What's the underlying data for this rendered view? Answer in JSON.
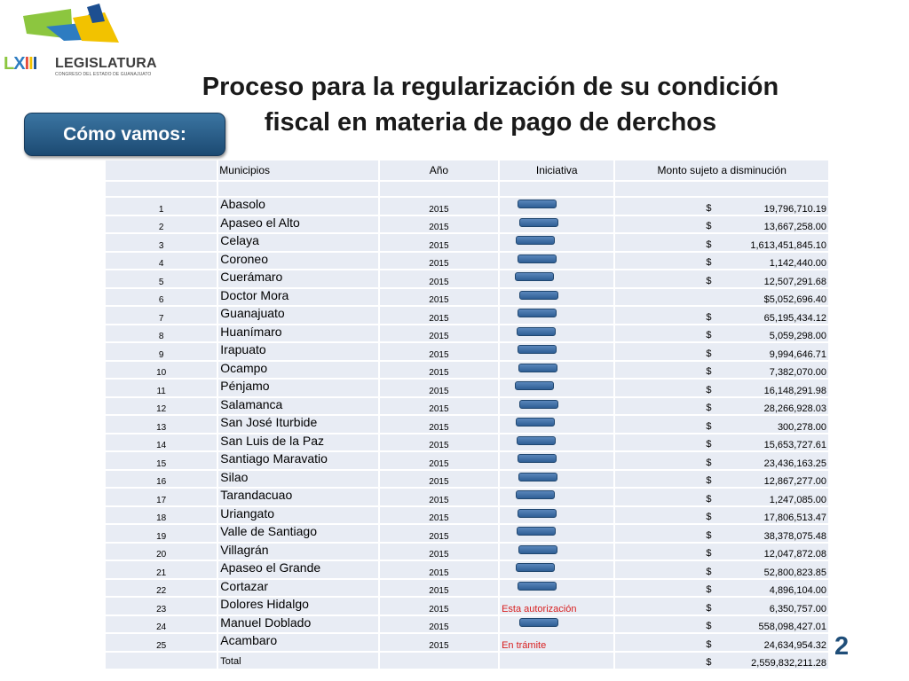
{
  "logo": {
    "lx": "LXIII",
    "name": "LEGISLATURA",
    "subtitle": "CONGRESO DEL ESTADO DE GUANAJUATO"
  },
  "title": {
    "line1": "Proceso para la regularización de su condición",
    "line2": "fiscal en materia de pago de derchos"
  },
  "badge": "Cómo vamos:",
  "table": {
    "headers": [
      "Municipios",
      "Año",
      "Iniciativa",
      "Monto sujeto a disminución"
    ],
    "rows": [
      {
        "n": "1",
        "name": "Abasolo",
        "year": "2015",
        "ini": "",
        "dollar": "$",
        "amount": "19,796,710.19"
      },
      {
        "n": "2",
        "name": "Apaseo el Alto",
        "year": "2015",
        "ini": "",
        "dollar": "$",
        "amount": "13,667,258.00"
      },
      {
        "n": "3",
        "name": "Celaya",
        "year": "2015",
        "ini": "",
        "dollar": "$",
        "amount": "1,613,451,845.10"
      },
      {
        "n": "4",
        "name": "Coroneo",
        "year": "2015",
        "ini": "",
        "dollar": "$",
        "amount": "1,142,440.00"
      },
      {
        "n": "5",
        "name": "Cuerámaro",
        "year": "2015",
        "ini": "",
        "dollar": "$",
        "amount": "12,507,291.68"
      },
      {
        "n": "6",
        "name": "Doctor Mora",
        "year": "2015",
        "ini": "",
        "dollar": "",
        "amount": "$5,052,696.40"
      },
      {
        "n": "7",
        "name": "Guanajuato",
        "year": "2015",
        "ini": "",
        "dollar": "$",
        "amount": "65,195,434.12"
      },
      {
        "n": "8",
        "name": "Huanímaro",
        "year": "2015",
        "ini": "",
        "dollar": "$",
        "amount": "5,059,298.00"
      },
      {
        "n": "9",
        "name": "Irapuato",
        "year": "2015",
        "ini": "",
        "dollar": "$",
        "amount": "9,994,646.71"
      },
      {
        "n": "10",
        "name": "Ocampo",
        "year": "2015",
        "ini": "",
        "dollar": "$",
        "amount": "7,382,070.00"
      },
      {
        "n": "11",
        "name": "Pénjamo",
        "year": "2015",
        "ini": "",
        "dollar": "$",
        "amount": "16,148,291.98"
      },
      {
        "n": "12",
        "name": "Salamanca",
        "year": "2015",
        "ini": "",
        "dollar": "$",
        "amount": "28,266,928.03"
      },
      {
        "n": "13",
        "name": "San José Iturbide",
        "year": "2015",
        "ini": "",
        "dollar": "$",
        "amount": "300,278.00"
      },
      {
        "n": "14",
        "name": "San Luis de la Paz",
        "year": "2015",
        "ini": "",
        "dollar": "$",
        "amount": "15,653,727.61"
      },
      {
        "n": "15",
        "name": "Santiago Maravatio",
        "year": "2015",
        "ini": "",
        "dollar": "$",
        "amount": "23,436,163.25"
      },
      {
        "n": "16",
        "name": "Silao",
        "year": "2015",
        "ini": "",
        "dollar": "$",
        "amount": "12,867,277.00"
      },
      {
        "n": "17",
        "name": "Tarandacuao",
        "year": "2015",
        "ini": "",
        "dollar": "$",
        "amount": "1,247,085.00"
      },
      {
        "n": "18",
        "name": "Uriangato",
        "year": "2015",
        "ini": "",
        "dollar": "$",
        "amount": "17,806,513.47"
      },
      {
        "n": "19",
        "name": "Valle de Santiago",
        "year": "2015",
        "ini": "",
        "dollar": "$",
        "amount": "38,378,075.48"
      },
      {
        "n": "20",
        "name": "Villagrán",
        "year": "2015",
        "ini": "",
        "dollar": "$",
        "amount": "12,047,872.08"
      },
      {
        "n": "21",
        "name": "Apaseo el Grande",
        "year": "2015",
        "ini": "",
        "dollar": "$",
        "amount": "52,800,823.85"
      },
      {
        "n": "22",
        "name": "Cortazar",
        "year": "2015",
        "ini": "",
        "dollar": "$",
        "amount": "4,896,104.00"
      },
      {
        "n": "23",
        "name": "Dolores Hidalgo",
        "year": "2015",
        "ini": "Esta autorización",
        "dollar": "$",
        "amount": "6,350,757.00"
      },
      {
        "n": "24",
        "name": "Manuel Doblado",
        "year": "2015",
        "ini": "",
        "dollar": "$",
        "amount": "558,098,427.01"
      },
      {
        "n": "25",
        "name": "Acambaro",
        "year": "2015",
        "ini": "En trámite",
        "dollar": "$",
        "amount": "24,634,954.32"
      }
    ],
    "total": {
      "label": "Total",
      "dollar": "$",
      "amount": "2,559,832,211.28"
    }
  },
  "page_number": "2",
  "colors": {
    "cell_bg": "#e8ecf4",
    "badge_top": "#3b75a2",
    "badge_bottom": "#1c4a72",
    "status_red": "#d81e1e",
    "page_number": "#1f4e79"
  }
}
